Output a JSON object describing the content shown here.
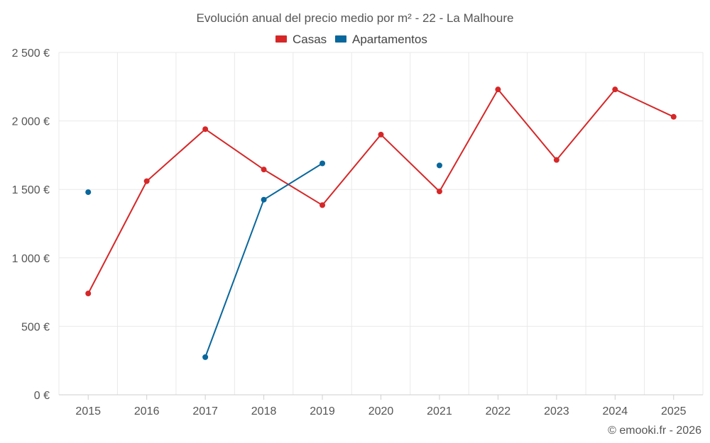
{
  "chart_data": {
    "type": "line",
    "title": "Evolución anual del precio medio por m² - 22 - La Malhoure",
    "xlabel": "",
    "ylabel": "",
    "categories": [
      "2015",
      "2016",
      "2017",
      "2018",
      "2019",
      "2020",
      "2021",
      "2022",
      "2023",
      "2024",
      "2025"
    ],
    "ylim": [
      0,
      2500
    ],
    "yticks": [
      0,
      500,
      1000,
      1500,
      2000,
      2500
    ],
    "ytick_labels": [
      "0 €",
      "500 €",
      "1 000 €",
      "1 500 €",
      "2 000 €",
      "2 500 €"
    ],
    "grid": true,
    "legend_position": "top-center",
    "series": [
      {
        "name": "Casas",
        "color": "#d62728",
        "values": [
          740,
          1560,
          1940,
          1645,
          1385,
          1900,
          1485,
          2230,
          1715,
          2230,
          2030
        ]
      },
      {
        "name": "Apartamentos",
        "color": "#08679c",
        "values": [
          1480,
          null,
          275,
          1425,
          1690,
          null,
          1675,
          null,
          null,
          null,
          null
        ]
      }
    ]
  },
  "credit": "© emooki.fr - 2026"
}
